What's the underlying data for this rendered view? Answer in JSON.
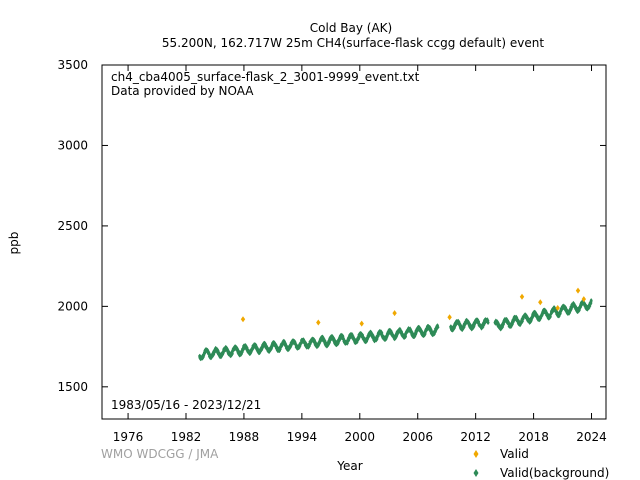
{
  "chart_data": {
    "type": "scatter",
    "title": "Cold Bay (AK)",
    "subtitle": "55.200N, 162.717W 25m    CH4(surface-flask ccgg default) event",
    "annotation_file": "ch4_cba4005_surface-flask_2_3001-9999_event.txt",
    "annotation_provider": "Data provided by NOAA",
    "date_range": "1983/05/16 - 2023/12/21",
    "xlabel": "Year",
    "ylabel": "ppb",
    "xlim": [
      1973.3,
      2025.5
    ],
    "ylim": [
      1300,
      3500
    ],
    "xticks": [
      1976,
      1982,
      1988,
      1994,
      2000,
      2006,
      2012,
      2018,
      2024
    ],
    "yticks": [
      1500,
      2000,
      2500,
      3000,
      3500
    ],
    "grid": false,
    "legend_position": "bottom-right",
    "credit": "WMO WDCGG / JMA",
    "colors": {
      "valid": "#f0a800",
      "background": "#2e8b57"
    },
    "series": [
      {
        "name": "Valid",
        "marker": "diamond",
        "x": [
          1987.9,
          1995.7,
          2000.2,
          2003.6,
          2009.3,
          2016.8,
          2018.7,
          2020.5,
          2022.6,
          2023.2
        ],
        "y": [
          1920,
          1900,
          1893,
          1958,
          1932,
          2060,
          2025,
          1990,
          2098,
          2045
        ]
      },
      {
        "name": "Valid(background)",
        "marker": "diamond",
        "segments": [
          {
            "x": [
              1983.4,
              2008.1
            ],
            "y": [
              1700,
              1855
            ]
          },
          {
            "x": [
              2009.4,
              2013.3
            ],
            "y": [
              1880,
              1895
            ]
          },
          {
            "x": [
              2014.0,
              2023.97
            ],
            "y": [
              1880,
              2015
            ]
          }
        ],
        "seasonal_amplitude": 22,
        "spread": 18
      }
    ]
  }
}
